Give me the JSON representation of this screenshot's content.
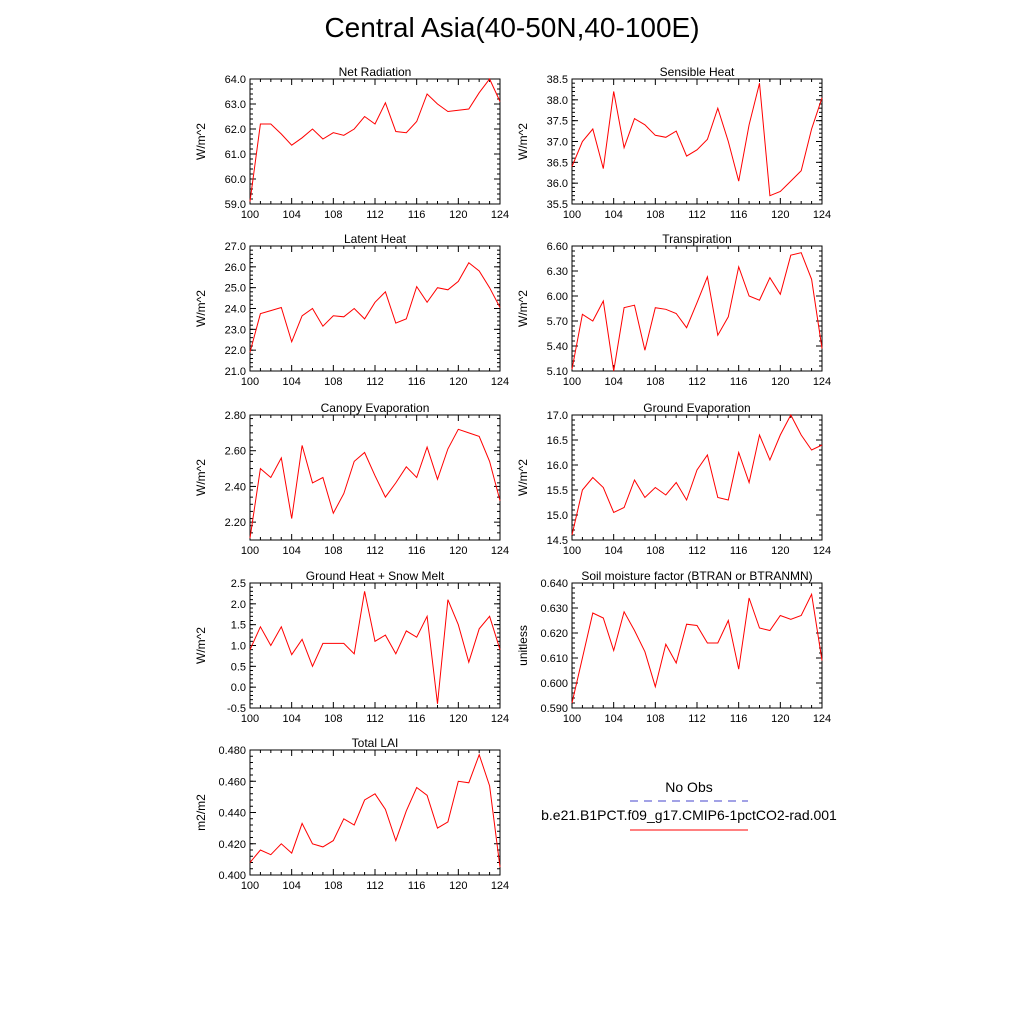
{
  "title": "Central Asia(40-50N,40-100E)",
  "legend": {
    "obs_label": "No Obs",
    "obs_color": "#4444cc",
    "model_label": "b.e21.B1PCT.f09_g17.CMIP6-1pctCO2-rad.001",
    "model_color": "#ff0000"
  },
  "chart_data": [
    {
      "type": "line",
      "title": "Net Radiation",
      "ylabel": "W/m^2",
      "xlim": [
        100,
        124
      ],
      "ylim": [
        59.0,
        64.0
      ],
      "xticks": [
        100,
        104,
        108,
        112,
        116,
        120,
        124
      ],
      "yticks": [
        59.0,
        60.0,
        61.0,
        62.0,
        63.0,
        64.0
      ],
      "ytick_labels": [
        "59.0",
        "60.0",
        "61.0",
        "62.0",
        "63.0",
        "64.0"
      ],
      "series": [
        {
          "x": [
            100,
            101,
            102,
            103,
            104,
            105,
            106,
            107,
            108,
            109,
            110,
            111,
            112,
            113,
            114,
            115,
            116,
            117,
            118,
            119,
            120,
            121,
            122,
            123,
            124
          ],
          "values": [
            59.1,
            62.2,
            62.2,
            61.8,
            61.35,
            61.65,
            62.0,
            61.6,
            61.85,
            61.75,
            62.0,
            62.5,
            62.2,
            63.05,
            61.9,
            61.85,
            62.3,
            63.4,
            63.0,
            62.7,
            62.75,
            62.8,
            63.45,
            64.0,
            63.1
          ]
        }
      ]
    },
    {
      "type": "line",
      "title": "Sensible Heat",
      "ylabel": "W/m^2",
      "xlim": [
        100,
        124
      ],
      "ylim": [
        35.5,
        38.5
      ],
      "xticks": [
        100,
        104,
        108,
        112,
        116,
        120,
        124
      ],
      "yticks": [
        35.5,
        36.0,
        36.5,
        37.0,
        37.5,
        38.0,
        38.5
      ],
      "ytick_labels": [
        "35.5",
        "36.0",
        "36.5",
        "37.0",
        "37.5",
        "38.0",
        "38.5"
      ],
      "series": [
        {
          "x": [
            100,
            101,
            102,
            103,
            104,
            105,
            106,
            107,
            108,
            109,
            110,
            111,
            112,
            113,
            114,
            115,
            116,
            117,
            118,
            119,
            120,
            121,
            122,
            123,
            124
          ],
          "values": [
            36.4,
            37.0,
            37.3,
            36.35,
            38.2,
            36.85,
            37.55,
            37.4,
            37.15,
            37.1,
            37.25,
            36.65,
            36.8,
            37.05,
            37.8,
            37.0,
            36.05,
            37.4,
            38.4,
            35.7,
            35.8,
            36.05,
            36.3,
            37.3,
            38.05
          ]
        }
      ]
    },
    {
      "type": "line",
      "title": "Latent Heat",
      "ylabel": "W/m^2",
      "xlim": [
        100,
        124
      ],
      "ylim": [
        21.0,
        27.0
      ],
      "xticks": [
        100,
        104,
        108,
        112,
        116,
        120,
        124
      ],
      "yticks": [
        21.0,
        22.0,
        23.0,
        24.0,
        25.0,
        26.0,
        27.0
      ],
      "ytick_labels": [
        "21.0",
        "22.0",
        "23.0",
        "24.0",
        "25.0",
        "26.0",
        "27.0"
      ],
      "series": [
        {
          "x": [
            100,
            101,
            102,
            103,
            104,
            105,
            106,
            107,
            108,
            109,
            110,
            111,
            112,
            113,
            114,
            115,
            116,
            117,
            118,
            119,
            120,
            121,
            122,
            123,
            124
          ],
          "values": [
            21.9,
            23.75,
            23.9,
            24.05,
            22.4,
            23.65,
            24.0,
            23.15,
            23.65,
            23.6,
            24.0,
            23.5,
            24.3,
            24.8,
            23.3,
            23.5,
            25.05,
            24.3,
            25.0,
            24.9,
            25.3,
            26.2,
            25.8,
            25.0,
            24.05
          ]
        }
      ]
    },
    {
      "type": "line",
      "title": "Transpiration",
      "ylabel": "W/m^2",
      "xlim": [
        100,
        124
      ],
      "ylim": [
        5.1,
        6.6
      ],
      "xticks": [
        100,
        104,
        108,
        112,
        116,
        120,
        124
      ],
      "yticks": [
        5.1,
        5.4,
        5.7,
        6.0,
        6.3,
        6.6
      ],
      "ytick_labels": [
        "5.10",
        "5.40",
        "5.70",
        "6.00",
        "6.30",
        "6.60"
      ],
      "series": [
        {
          "x": [
            100,
            101,
            102,
            103,
            104,
            105,
            106,
            107,
            108,
            109,
            110,
            111,
            112,
            113,
            114,
            115,
            116,
            117,
            118,
            119,
            120,
            121,
            122,
            123,
            124
          ],
          "values": [
            5.12,
            5.78,
            5.7,
            5.94,
            5.1,
            5.86,
            5.89,
            5.35,
            5.86,
            5.84,
            5.79,
            5.62,
            5.92,
            6.23,
            5.53,
            5.75,
            6.35,
            6.0,
            5.95,
            6.22,
            6.02,
            6.49,
            6.52,
            6.2,
            5.37
          ]
        }
      ]
    },
    {
      "type": "line",
      "title": "Canopy Evaporation",
      "ylabel": "W/m^2",
      "xlim": [
        100,
        124
      ],
      "ylim": [
        2.1,
        2.8
      ],
      "xticks": [
        100,
        104,
        108,
        112,
        116,
        120,
        124
      ],
      "yticks": [
        2.2,
        2.4,
        2.6,
        2.8
      ],
      "ytick_labels": [
        "2.20",
        "2.40",
        "2.60",
        "2.80"
      ],
      "series": [
        {
          "x": [
            100,
            101,
            102,
            103,
            104,
            105,
            106,
            107,
            108,
            109,
            110,
            111,
            112,
            113,
            114,
            115,
            116,
            117,
            118,
            119,
            120,
            121,
            122,
            123,
            124
          ],
          "values": [
            2.11,
            2.5,
            2.45,
            2.56,
            2.22,
            2.63,
            2.42,
            2.45,
            2.25,
            2.36,
            2.54,
            2.59,
            2.46,
            2.34,
            2.42,
            2.51,
            2.45,
            2.62,
            2.44,
            2.61,
            2.72,
            2.7,
            2.68,
            2.54,
            2.32
          ]
        }
      ]
    },
    {
      "type": "line",
      "title": "Ground Evaporation",
      "ylabel": "W/m^2",
      "xlim": [
        100,
        124
      ],
      "ylim": [
        14.5,
        17.0
      ],
      "xticks": [
        100,
        104,
        108,
        112,
        116,
        120,
        124
      ],
      "yticks": [
        14.5,
        15.0,
        15.5,
        16.0,
        16.5,
        17.0
      ],
      "ytick_labels": [
        "14.5",
        "15.0",
        "15.5",
        "16.0",
        "16.5",
        "17.0"
      ],
      "series": [
        {
          "x": [
            100,
            101,
            102,
            103,
            104,
            105,
            106,
            107,
            108,
            109,
            110,
            111,
            112,
            113,
            114,
            115,
            116,
            117,
            118,
            119,
            120,
            121,
            122,
            123,
            124
          ],
          "values": [
            14.6,
            15.5,
            15.75,
            15.55,
            15.05,
            15.15,
            15.7,
            15.35,
            15.55,
            15.4,
            15.65,
            15.3,
            15.9,
            16.2,
            15.35,
            15.3,
            16.25,
            15.65,
            16.6,
            16.1,
            16.6,
            17.0,
            16.6,
            16.3,
            16.4
          ]
        }
      ]
    },
    {
      "type": "line",
      "title": "Ground Heat + Snow Melt",
      "ylabel": "W/m^2",
      "xlim": [
        100,
        124
      ],
      "ylim": [
        -0.5,
        2.5
      ],
      "xticks": [
        100,
        104,
        108,
        112,
        116,
        120,
        124
      ],
      "yticks": [
        -0.5,
        0.0,
        0.5,
        1.0,
        1.5,
        2.0,
        2.5
      ],
      "ytick_labels": [
        "-0.5",
        "0.0",
        "0.5",
        "1.0",
        "1.5",
        "2.0",
        "2.5"
      ],
      "series": [
        {
          "x": [
            100,
            101,
            102,
            103,
            104,
            105,
            106,
            107,
            108,
            109,
            110,
            111,
            112,
            113,
            114,
            115,
            116,
            117,
            118,
            119,
            120,
            121,
            122,
            123,
            124
          ],
          "values": [
            0.9,
            1.45,
            1.0,
            1.45,
            0.78,
            1.15,
            0.5,
            1.05,
            1.05,
            1.05,
            0.8,
            2.3,
            1.1,
            1.25,
            0.8,
            1.35,
            1.2,
            1.7,
            -0.4,
            2.1,
            1.5,
            0.6,
            1.4,
            1.7,
            0.9
          ]
        }
      ]
    },
    {
      "type": "line",
      "title": "Soil moisture factor (BTRAN or BTRANMN)",
      "ylabel": "unitless",
      "xlim": [
        100,
        124
      ],
      "ylim": [
        0.59,
        0.64
      ],
      "xticks": [
        100,
        104,
        108,
        112,
        116,
        120,
        124
      ],
      "yticks": [
        0.59,
        0.6,
        0.61,
        0.62,
        0.63,
        0.64
      ],
      "ytick_labels": [
        "0.590",
        "0.600",
        "0.610",
        "0.620",
        "0.630",
        "0.640"
      ],
      "series": [
        {
          "x": [
            100,
            101,
            102,
            103,
            104,
            105,
            106,
            107,
            108,
            109,
            110,
            111,
            112,
            113,
            114,
            115,
            116,
            117,
            118,
            119,
            120,
            121,
            122,
            123,
            124
          ],
          "values": [
            0.592,
            0.61,
            0.628,
            0.626,
            0.613,
            0.6285,
            0.621,
            0.6125,
            0.5985,
            0.6155,
            0.608,
            0.6235,
            0.623,
            0.616,
            0.616,
            0.625,
            0.6055,
            0.634,
            0.622,
            0.621,
            0.627,
            0.6255,
            0.627,
            0.6355,
            0.609
          ]
        }
      ]
    },
    {
      "type": "line",
      "title": "Total LAI",
      "ylabel": "m2/m2",
      "xlim": [
        100,
        124
      ],
      "ylim": [
        0.4,
        0.48
      ],
      "xticks": [
        100,
        104,
        108,
        112,
        116,
        120,
        124
      ],
      "yticks": [
        0.4,
        0.42,
        0.44,
        0.46,
        0.48
      ],
      "ytick_labels": [
        "0.400",
        "0.420",
        "0.440",
        "0.460",
        "0.480"
      ],
      "series": [
        {
          "x": [
            100,
            101,
            102,
            103,
            104,
            105,
            106,
            107,
            108,
            109,
            110,
            111,
            112,
            113,
            114,
            115,
            116,
            117,
            118,
            119,
            120,
            121,
            122,
            123,
            124
          ],
          "values": [
            0.408,
            0.416,
            0.413,
            0.42,
            0.414,
            0.433,
            0.42,
            0.418,
            0.422,
            0.436,
            0.432,
            0.448,
            0.452,
            0.442,
            0.422,
            0.441,
            0.456,
            0.451,
            0.43,
            0.434,
            0.46,
            0.459,
            0.477,
            0.457,
            0.405
          ]
        }
      ]
    }
  ]
}
